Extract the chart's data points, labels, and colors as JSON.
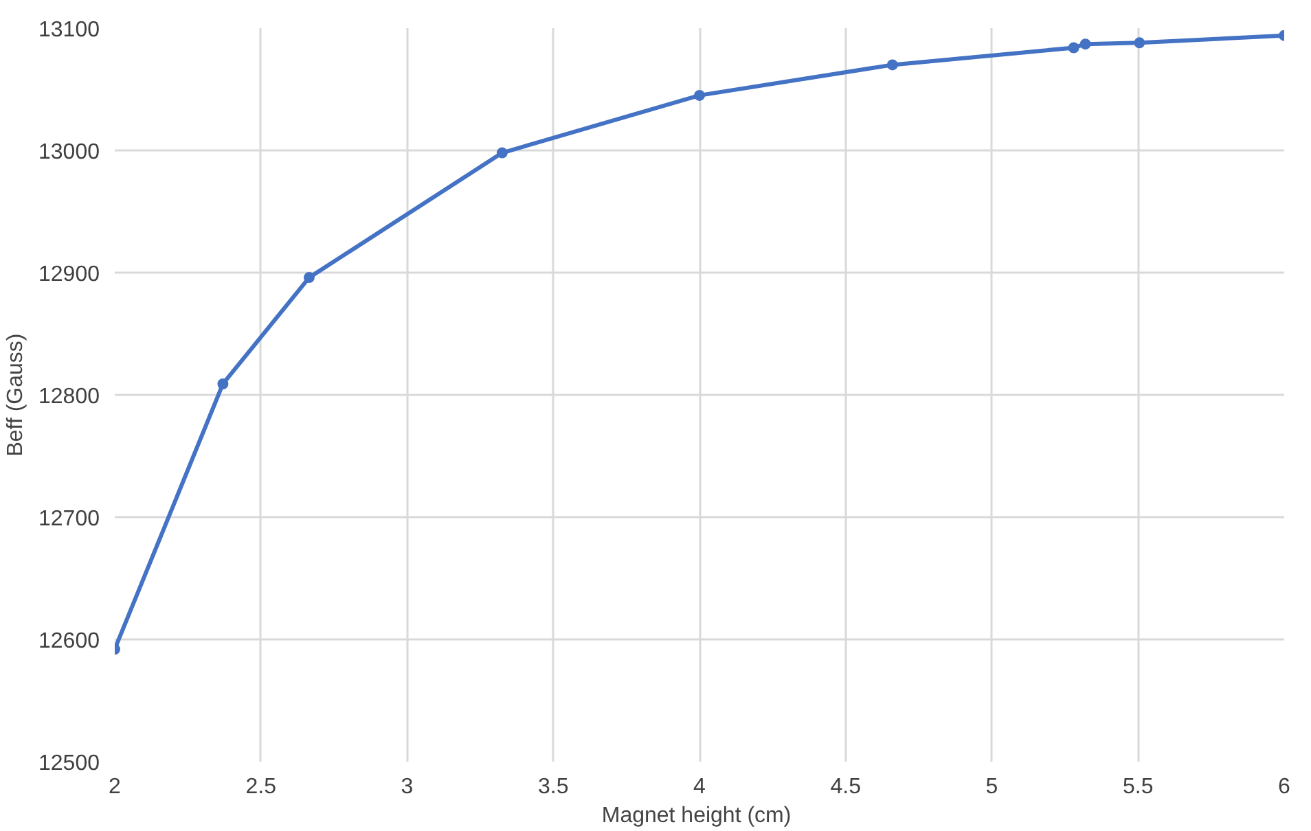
{
  "chart_data": {
    "type": "line",
    "xlabel": "Magnet height  (cm)",
    "ylabel": "Beff (Gauss)",
    "x": [
      2.0,
      2.37,
      2.665,
      3.325,
      4.0,
      4.66,
      5.28,
      5.32,
      5.505,
      6.0
    ],
    "series": [
      {
        "color": "#4472c4",
        "values": [
          12592,
          12809,
          12896,
          12998,
          13045,
          13070,
          13084,
          13087,
          13088,
          13094
        ]
      }
    ],
    "xlim": [
      2,
      6
    ],
    "xticks": [
      2,
      2.5,
      3,
      3.5,
      4,
      4.5,
      5,
      5.5,
      6
    ],
    "ylim": [
      12500,
      13100
    ],
    "yticks": [
      12500,
      12600,
      12700,
      12800,
      12900,
      13000,
      13100
    ],
    "grid": true,
    "marker": "circle",
    "line_style": "solid"
  }
}
